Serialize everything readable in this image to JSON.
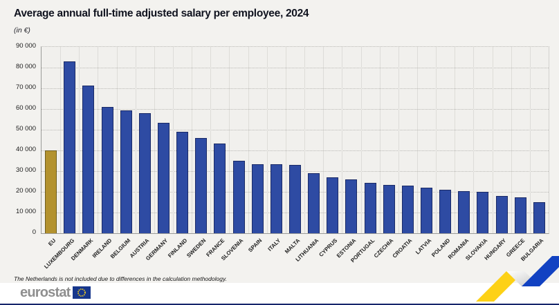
{
  "header": {
    "title": "Average annual full-time adjusted salary per employee, 2024",
    "subtitle": "(in €)"
  },
  "chart_data": {
    "type": "bar",
    "title": "Average annual full-time adjusted salary per employee, 2024",
    "unit": "in €",
    "categories": [
      "EU",
      "LUXEMBOURG",
      "DENMARK",
      "IRELAND",
      "BELGIUM",
      "AUSTRIA",
      "GERMANY",
      "FINLAND",
      "SWEDEN",
      "FRANCE",
      "SLOVENIA",
      "SPAIN",
      "ITALY",
      "MALTA",
      "LITHUANIA",
      "CYPRUS",
      "ESTONIA",
      "PORTUGAL",
      "CZECHIA",
      "CROATIA",
      "LATVIA",
      "POLAND",
      "ROMANIA",
      "SLOVAKIA",
      "HUNGARY",
      "GREECE",
      "BULGARIA"
    ],
    "values": [
      40000,
      83000,
      71500,
      61000,
      59500,
      58000,
      53500,
      49000,
      46000,
      43500,
      35000,
      33500,
      33500,
      33000,
      29000,
      27000,
      26000,
      24500,
      23500,
      23000,
      22000,
      21000,
      20500,
      20000,
      18000,
      17500,
      15000
    ],
    "highlight_category": "EU",
    "xlabel": "",
    "ylabel": "",
    "ylim": [
      0,
      90000
    ],
    "ytick_step": 10000,
    "yticks": [
      0,
      10000,
      20000,
      30000,
      40000,
      50000,
      60000,
      70000,
      80000,
      90000
    ],
    "ytick_labels": [
      "0",
      "10 000",
      "20 000",
      "30 000",
      "40 000",
      "50 000",
      "60 000",
      "70 000",
      "80 000",
      "90 000"
    ],
    "grid": "horizontal dotted lines, vertical column separators",
    "legend": "none"
  },
  "footnote": "The Netherlands is not included due to differences in the calculation methodology.",
  "footer": {
    "logo_text": "eurostat",
    "flag_icon": "eu-flag"
  },
  "colors": {
    "bar_default": "#2e4ba3",
    "bar_default_border": "#1a2a66",
    "bar_highlight": "#b3922e",
    "bar_highlight_border": "#6e5d1d",
    "background": "#f3f2ef",
    "plot_background": "#f1f0ed",
    "footer_background": "#ffffff",
    "bottom_line": "#16256b",
    "ribbon_yellow": "#fdd116",
    "ribbon_blue": "#1242c2",
    "logo_gray": "#8f8f8f",
    "flag_blue": "#16368c",
    "flag_stars": "#ffd617"
  }
}
